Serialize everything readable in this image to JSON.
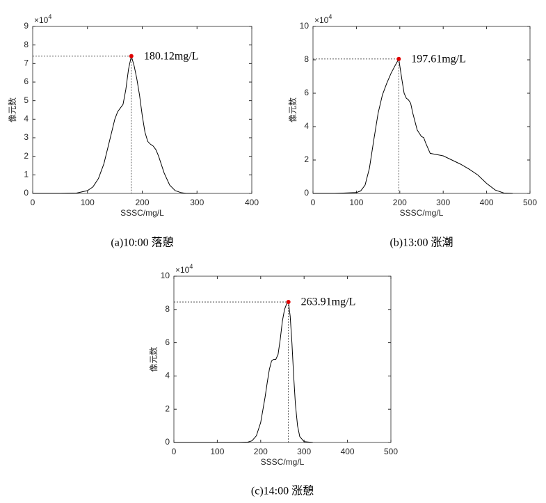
{
  "chart_data": [
    {
      "type": "line",
      "xlabel": "SSSC/mg/L",
      "ylabel": "像元数",
      "y_scale_label": "×10",
      "y_scale_exponent": "4",
      "caption": "(a)10:00 落憩",
      "color": "#000000",
      "x": [
        0,
        50,
        80,
        100,
        110,
        120,
        130,
        140,
        150,
        155,
        160,
        165,
        170,
        175,
        180.12,
        185,
        190,
        195,
        200,
        205,
        210,
        215,
        220,
        225,
        230,
        240,
        250,
        260,
        270,
        280,
        300
      ],
      "values": [
        0,
        0,
        0.02,
        0.15,
        0.35,
        0.8,
        1.6,
        2.8,
        4.0,
        4.4,
        4.6,
        4.8,
        5.6,
        6.7,
        7.4,
        6.9,
        6.2,
        5.3,
        4.2,
        3.3,
        2.8,
        2.65,
        2.55,
        2.35,
        2.0,
        1.1,
        0.45,
        0.15,
        0.05,
        0,
        0
      ],
      "xlim": [
        0,
        400
      ],
      "xticks": [
        0,
        100,
        200,
        300,
        400
      ],
      "ylim": [
        0,
        9
      ],
      "yticks": [
        0,
        1,
        2,
        3,
        4,
        5,
        6,
        7,
        8,
        9
      ],
      "peak": {
        "x": 180.12,
        "y": 7.4,
        "label": "180.12mg/L",
        "color": "#e00000"
      }
    },
    {
      "type": "line",
      "xlabel": "SSSC/mg/L",
      "ylabel": "像元数",
      "y_scale_label": "×10",
      "y_scale_exponent": "4",
      "caption": "(b)13:00 涨潮",
      "color": "#000000",
      "x": [
        0,
        50,
        100,
        110,
        120,
        130,
        140,
        150,
        160,
        170,
        180,
        190,
        197.61,
        205,
        210,
        215,
        220,
        225,
        230,
        240,
        250,
        255,
        260,
        270,
        280,
        300,
        320,
        340,
        360,
        380,
        400,
        420,
        440,
        460
      ],
      "values": [
        0,
        0,
        0.05,
        0.15,
        0.5,
        1.5,
        3.2,
        4.8,
        5.9,
        6.6,
        7.2,
        7.7,
        8.05,
        6.8,
        6.0,
        5.7,
        5.6,
        5.4,
        4.8,
        3.8,
        3.4,
        3.35,
        3.0,
        2.4,
        2.35,
        2.25,
        2.0,
        1.75,
        1.45,
        1.1,
        0.6,
        0.2,
        0.02,
        0
      ],
      "xlim": [
        0,
        500
      ],
      "xticks": [
        0,
        100,
        200,
        300,
        400,
        500
      ],
      "ylim": [
        0,
        10
      ],
      "yticks": [
        0,
        2,
        4,
        6,
        8,
        10
      ],
      "peak": {
        "x": 197.61,
        "y": 8.05,
        "label": "197.61mg/L",
        "color": "#e00000"
      }
    },
    {
      "type": "line",
      "xlabel": "SSSC/mg/L",
      "ylabel": "像元数",
      "y_scale_label": "×10",
      "y_scale_exponent": "4",
      "caption": "(c)14:00 涨憩",
      "color": "#000000",
      "x": [
        0,
        100,
        150,
        170,
        180,
        190,
        200,
        210,
        215,
        220,
        225,
        230,
        235,
        240,
        245,
        250,
        255,
        260,
        263.91,
        268,
        272,
        276,
        280,
        285,
        290,
        300,
        320
      ],
      "values": [
        0,
        0,
        0,
        0.02,
        0.1,
        0.4,
        1.2,
        2.7,
        3.6,
        4.4,
        4.9,
        5.0,
        5.0,
        5.3,
        6.2,
        7.3,
        8.0,
        8.35,
        8.45,
        7.6,
        6.0,
        4.0,
        2.3,
        1.0,
        0.35,
        0.05,
        0
      ],
      "xlim": [
        0,
        500
      ],
      "xticks": [
        0,
        100,
        200,
        300,
        400,
        500
      ],
      "ylim": [
        0,
        10
      ],
      "yticks": [
        0,
        2,
        4,
        6,
        8,
        10
      ],
      "peak": {
        "x": 263.91,
        "y": 8.45,
        "label": "263.91mg/L",
        "color": "#e00000"
      }
    }
  ]
}
